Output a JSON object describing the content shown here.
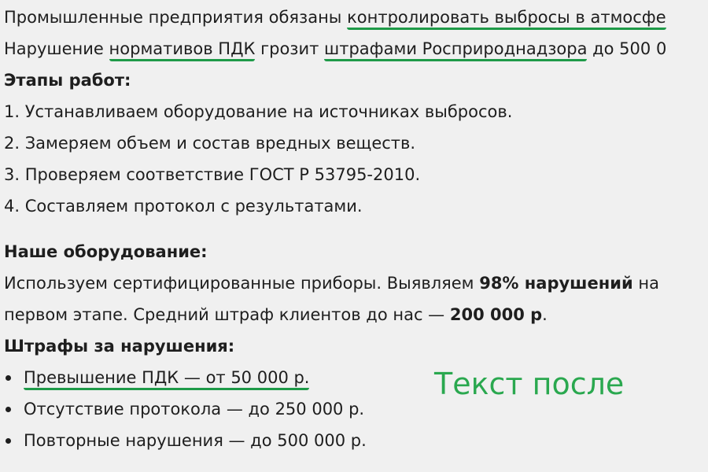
{
  "blocks": [
    {
      "kind": "paragraph",
      "lines": [
        [
          {
            "text": "Промышленные предприятия обязаны "
          },
          {
            "text": "контролировать выбросы в атмосфе",
            "underline": true
          }
        ],
        [
          {
            "text": "Нарушение "
          },
          {
            "text": "нормативов ПДК",
            "underline": true
          },
          {
            "text": " грозит "
          },
          {
            "text": "штрафами Росприроднадзора",
            "underline": true
          },
          {
            "text": " до 500 0"
          }
        ]
      ]
    },
    {
      "kind": "heading",
      "text": "Этапы работ:"
    },
    {
      "kind": "numbered",
      "items": [
        "1. Устанавливаем оборудование на источниках выбросов.",
        "2. Замеряем объем и состав вредных веществ.",
        "3. Проверяем соответствие ГОСТ Р 53795-2010.",
        "4. Составляем протокол с результатами."
      ]
    },
    {
      "kind": "heading",
      "text": "Наше оборудование:"
    },
    {
      "kind": "paragraph",
      "lines": [
        [
          {
            "text": "Используем сертифицированные приборы. Выявляем "
          },
          {
            "text": "98% нарушений",
            "bold": true
          },
          {
            "text": " на"
          }
        ],
        [
          {
            "text": "первом этапе. Средний штраф клиентов до нас — "
          },
          {
            "text": "200 000 р",
            "bold": true
          },
          {
            "text": "."
          }
        ]
      ]
    },
    {
      "kind": "heading",
      "text": "Штрафы за нарушения:"
    },
    {
      "kind": "bullets",
      "items": [
        [
          {
            "text": "Превышение ПДК — от 50 000 р.",
            "underline": true
          }
        ],
        [
          {
            "text": "Отсутствие протокола — до 250 000 р."
          }
        ],
        [
          {
            "text": "Повторные нарушения — до 500 000 р."
          }
        ]
      ]
    }
  ],
  "annotation": "Текст после"
}
